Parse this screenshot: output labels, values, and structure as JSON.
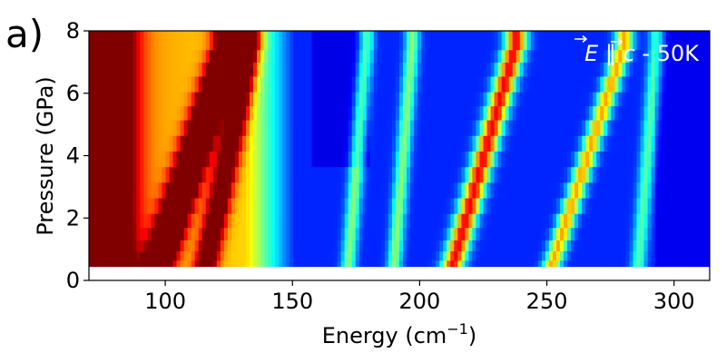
{
  "chart_data": {
    "type": "heatmap",
    "panel_label": "a)",
    "xlabel": "Energy (cm",
    "xlabel_superscript": "−1",
    "xlabel_suffix": ")",
    "ylabel": "Pressure (GPa)",
    "annotation_prefix": "E ∥ c",
    "annotation_suffix": " - 50K",
    "xlim": [
      70,
      314
    ],
    "ylim": [
      0,
      8
    ],
    "x_ticks": [
      100,
      150,
      200,
      250,
      300
    ],
    "y_ticks": [
      0,
      2,
      4,
      6,
      8
    ],
    "colormap": "jet",
    "data_floor_pressure": 0.45,
    "pressure_rows": [
      0.5,
      0.8,
      1.1,
      1.5,
      1.9,
      2.4,
      2.9,
      3.4,
      3.9,
      4.4,
      4.9,
      5.4,
      5.8,
      6.3,
      6.8,
      7.2,
      7.6
    ],
    "spectral_features": [
      {
        "energy_at_0p5": 75,
        "shift_per_gpa": 0.0,
        "width": 8,
        "intensity": 0.92
      },
      {
        "energy_at_0p5": 97,
        "shift_per_gpa": 4.0,
        "width": 4,
        "intensity": 0.85
      },
      {
        "energy_at_0p5": 116,
        "shift_per_gpa": 2.5,
        "width": 3,
        "intensity": 0.55
      },
      {
        "energy_at_0p5": 172,
        "shift_per_gpa": 1.0,
        "width": 2,
        "intensity": 0.35
      },
      {
        "energy_at_0p5": 190,
        "shift_per_gpa": 1.0,
        "width": 2,
        "intensity": 0.35
      },
      {
        "energy_at_0p5": 213,
        "shift_per_gpa": 3.5,
        "width": 3,
        "intensity": 0.72
      },
      {
        "energy_at_0p5": 252,
        "shift_per_gpa": 4.0,
        "width": 2.5,
        "intensity": 0.55
      },
      {
        "energy_at_0p5": 286,
        "shift_per_gpa": 1.0,
        "width": 2,
        "intensity": 0.3
      }
    ]
  }
}
